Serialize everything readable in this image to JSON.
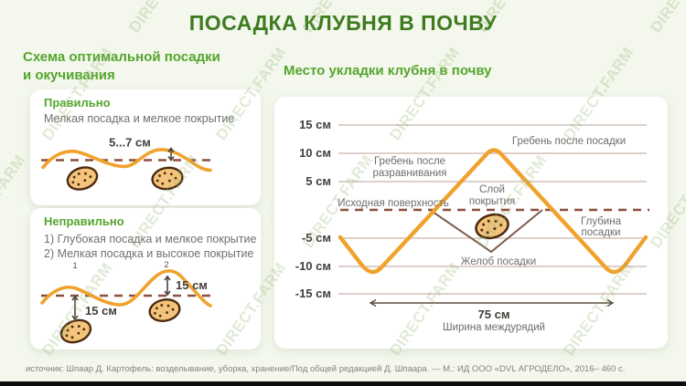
{
  "page": {
    "title": "ПОСАДКА КЛУБНЯ В ПОЧВУ",
    "source": "источник: Шпаар Д. Картофель: возделывание, уборка, хранение/Под общей редакцией Д. Шпаара. — М.: ИД ООО «DVL АГРОДЕЛО», 2016– 460 с."
  },
  "watermark": {
    "text": "DIRECT.FARM"
  },
  "colors": {
    "background": "#f3f7ec",
    "title_green": "#3d7b1f",
    "section_green": "#55a52e",
    "text_gray": "#6e6e6e",
    "dark_text": "#42403b",
    "soil_orange": "#f0a22d",
    "surface_dash_maroon": "#8d4f3c",
    "grid_brown": "#bda294",
    "furrow_brown": "#7d5c4d",
    "potato_fill": "#f4c47c",
    "potato_outline": "#4b2a10"
  },
  "left": {
    "heading_line1": "Схема оптимальной посадки",
    "heading_line2": "и окучивания",
    "correct": {
      "title": "Правильно",
      "desc": "Мелкая посадка и мелкое покрытие",
      "measure": "5...7 см"
    },
    "incorrect": {
      "title": "Неправильно",
      "item1": "1) Глубокая посадка и мелкое покрытие",
      "item2": "2) Мелкая посадка и высокое покрытие",
      "marker1": "1",
      "marker2": "2",
      "measure1": "15 см",
      "measure2": "15 см"
    }
  },
  "right": {
    "heading": "Место укладки клубня в почву",
    "ticks": [
      "15 см",
      "10 см",
      "5 см",
      "-5 см",
      "-10 см",
      "-15 см"
    ],
    "labels": {
      "ridge_after_planting": "Гребень после посадки",
      "ridge_after_leveling_1": "Гребень после",
      "ridge_after_leveling_2": "разравнивания",
      "cover_layer_1": "Слой",
      "cover_layer_2": "покрытия",
      "initial_surface": "Исходная поверхность",
      "planting_depth_1": "Глубина",
      "planting_depth_2": "посадки",
      "planting_furrow": "Желоб посадки",
      "row_width_value": "75 см",
      "row_width_label": "Ширина междурядий"
    }
  },
  "chart_data": {
    "type": "line",
    "title": "Место укладки клубня в почву",
    "y_unit": "см",
    "y_ticks_cm": [
      15,
      10,
      5,
      -5,
      -10,
      -15
    ],
    "ylim": [
      -15,
      15
    ],
    "zero_line": "Исходная поверхность (dashed)",
    "row_spacing_cm": 75,
    "series": [
      {
        "name": "Поверхность почвы после посадки (гребень)",
        "color": "#f0a22d",
        "points_cm": [
          [
            -9,
            -5
          ],
          [
            0,
            -10
          ],
          [
            37.5,
            10
          ],
          [
            75,
            -10
          ],
          [
            84,
            -5
          ]
        ]
      },
      {
        "name": "Желоб посадки (контур)",
        "color": "#7d5c4d",
        "points_cm": [
          [
            18.5,
            0
          ],
          [
            37.5,
            -7.5
          ],
          [
            56.5,
            0
          ]
        ]
      }
    ],
    "annotations": [
      "Гребень после посадки (+10 см)",
      "Гребень после разравнивания (+5 см)",
      "Исходная поверхность (0 см)",
      "Слой покрытия",
      "Глубина посадки",
      "Желоб посадки",
      "75 см — Ширина междурядий"
    ]
  }
}
